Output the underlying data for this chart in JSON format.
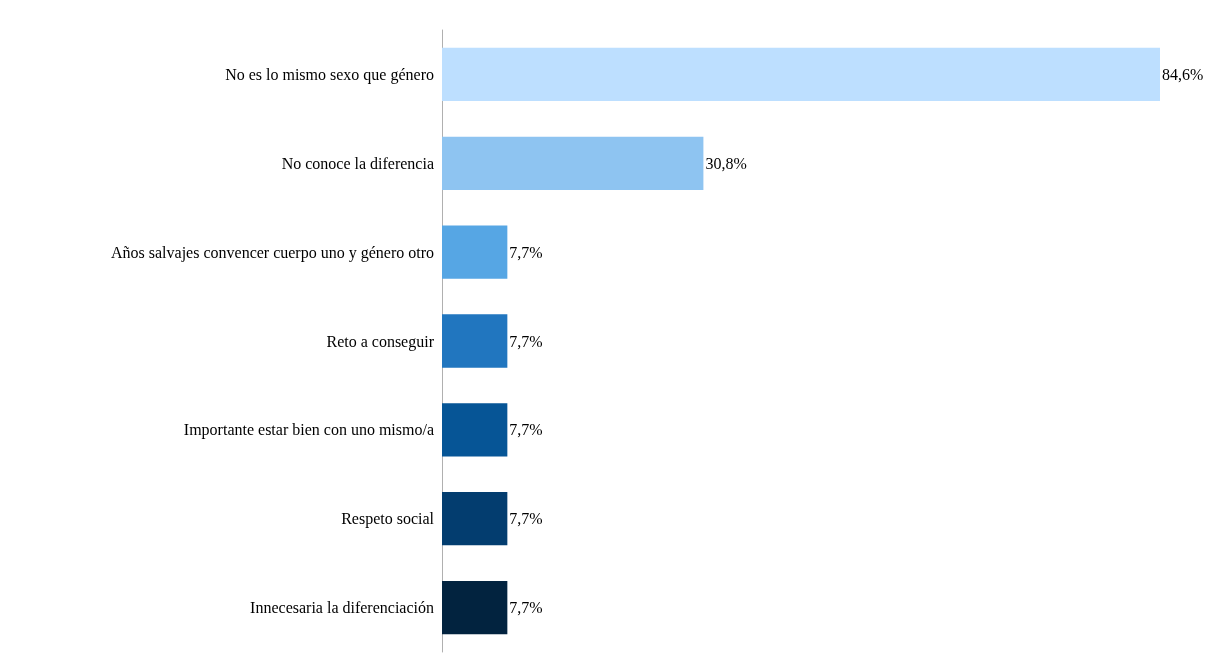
{
  "chart_data": {
    "type": "bar",
    "orientation": "horizontal",
    "categories": [
      "No es lo mismo sexo que género",
      "No conoce la diferencia",
      "Años salvajes convencer cuerpo uno y género otro",
      "Reto a conseguir",
      "Importante estar bien con uno mismo/a",
      "Respeto social",
      "Innecesaria la diferenciación"
    ],
    "values": [
      84.6,
      30.8,
      7.7,
      7.7,
      7.7,
      7.7,
      7.7
    ],
    "value_labels": [
      "84,6%",
      "30,8%",
      "7,7%",
      "7,7%",
      "7,7%",
      "7,7%",
      "7,7%"
    ],
    "colors": [
      "#bddfff",
      "#8ec4f1",
      "#56a6e4",
      "#2176bf",
      "#065596",
      "#033d6f",
      "#02233f"
    ]
  }
}
